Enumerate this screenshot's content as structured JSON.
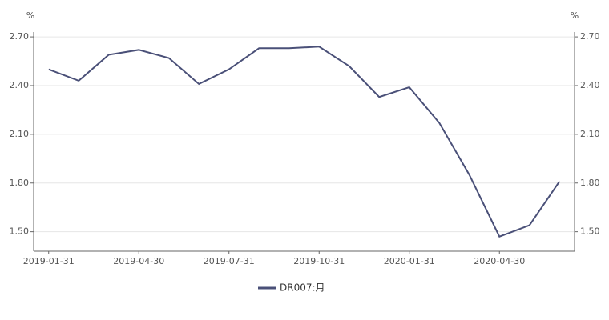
{
  "chart_data": {
    "type": "line",
    "y_unit": "%",
    "y2_unit": "%",
    "categories": [
      "2019-01-31",
      null,
      null,
      "2019-04-30",
      null,
      null,
      "2019-07-31",
      null,
      null,
      "2019-10-31",
      null,
      null,
      "2020-01-31",
      null,
      null,
      "2020-04-30",
      null,
      null
    ],
    "series": [
      {
        "name": "DR007:月",
        "color": "#4a5078",
        "values": [
          2.5,
          2.43,
          2.59,
          2.62,
          2.57,
          2.41,
          2.5,
          2.63,
          2.63,
          2.64,
          2.52,
          2.33,
          2.39,
          2.17,
          1.85,
          1.47,
          1.54,
          1.81
        ]
      }
    ],
    "ylim": [
      1.38,
      2.73
    ],
    "yticks": [
      {
        "value": 1.5,
        "label": "1.50"
      },
      {
        "value": 1.8,
        "label": "1.80"
      },
      {
        "value": 2.1,
        "label": "2.10"
      },
      {
        "value": 2.4,
        "label": "2.40"
      },
      {
        "value": 2.7,
        "label": "2.70"
      }
    ],
    "y2lim": [
      1.38,
      2.73
    ],
    "y2ticks": [
      {
        "value": 1.5,
        "label": "1.50"
      },
      {
        "value": 1.8,
        "label": "1.80"
      },
      {
        "value": 2.1,
        "label": "2.10"
      },
      {
        "value": 2.4,
        "label": "2.40"
      },
      {
        "value": 2.7,
        "label": "2.70"
      }
    ],
    "grid": true,
    "legend": "bottom"
  }
}
